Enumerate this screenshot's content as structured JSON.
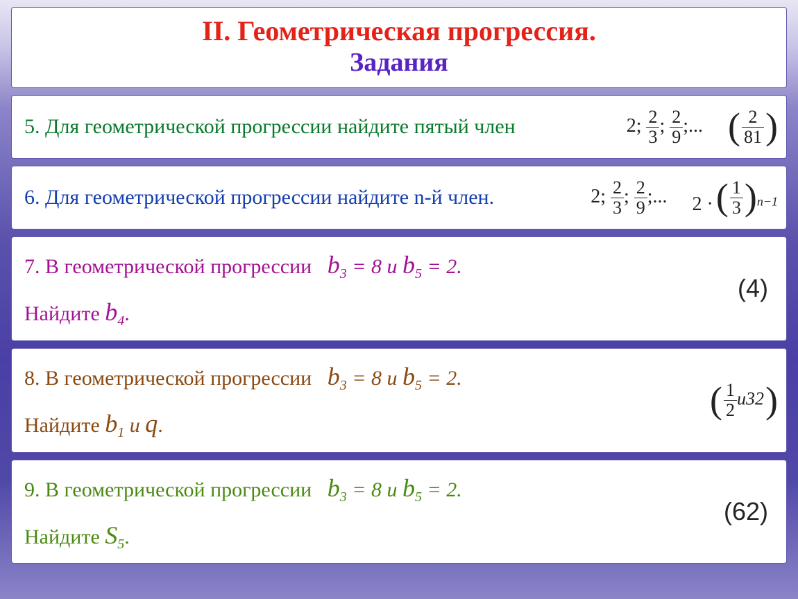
{
  "colors": {
    "title_main": "#e3231a",
    "title_sub": "#5a24c4",
    "t5": "#0a7a2d",
    "t6": "#153fb0",
    "t7": "#a31293",
    "t8": "#8a4a12",
    "t9": "#4a8a12",
    "math": "#222222",
    "answer": "#242424"
  },
  "title": {
    "main": "II. Геометрическая прогрессия.",
    "sub": "Задания"
  },
  "task5": {
    "num": "5.",
    "text": "Для геометрической прогрессии найдите пятый член",
    "seq_lead": "2;",
    "f1n": "2",
    "f1d": "3",
    "f2n": "2",
    "f2d": "9",
    "tail": ";...",
    "ans_n": "2",
    "ans_d": "81"
  },
  "task6": {
    "num": "6.",
    "text": "Для геометрической прогрессии найдите n-й член.",
    "seq_lead": "2;",
    "f1n": "2",
    "f1d": "3",
    "f2n": "2",
    "f2d": "9",
    "tail": ";...",
    "coef": "2 ·",
    "ans_n": "1",
    "ans_d": "3",
    "exp": "n−1"
  },
  "task7": {
    "num": "7.",
    "pre": "В геометрической прогрессии",
    "b3": "b",
    "b3s": "3",
    "b3v": " = 8 и ",
    "b5": "b",
    "b5s": "5",
    "b5v": " = 2.",
    "post": "Найдите ",
    "bf": "b",
    "bfs": "4",
    "bfend": ".",
    "answer": "(4)"
  },
  "task8": {
    "num": "8.",
    "pre": "В геометрической прогрессии",
    "b3": "b",
    "b3s": "3",
    "b3v": " = 8 и ",
    "b5": "b",
    "b5s": "5",
    "b5v": " = 2.",
    "post": "Найдите ",
    "bf": "b",
    "bfs": "1",
    "mid": " и ",
    "q": "q",
    "bfend": ".",
    "ans_n": "1",
    "ans_d": "2",
    "ans_tail": "и32"
  },
  "task9": {
    "num": "9.",
    "pre": "В геометрической прогрессии",
    "b3": "b",
    "b3s": "3",
    "b3v": " = 8 и ",
    "b5": "b",
    "b5s": "5",
    "b5v": " = 2.",
    "post": "Найдите ",
    "bf": "S",
    "bfs": "5",
    "bfend": ".",
    "answer": "(62)"
  }
}
